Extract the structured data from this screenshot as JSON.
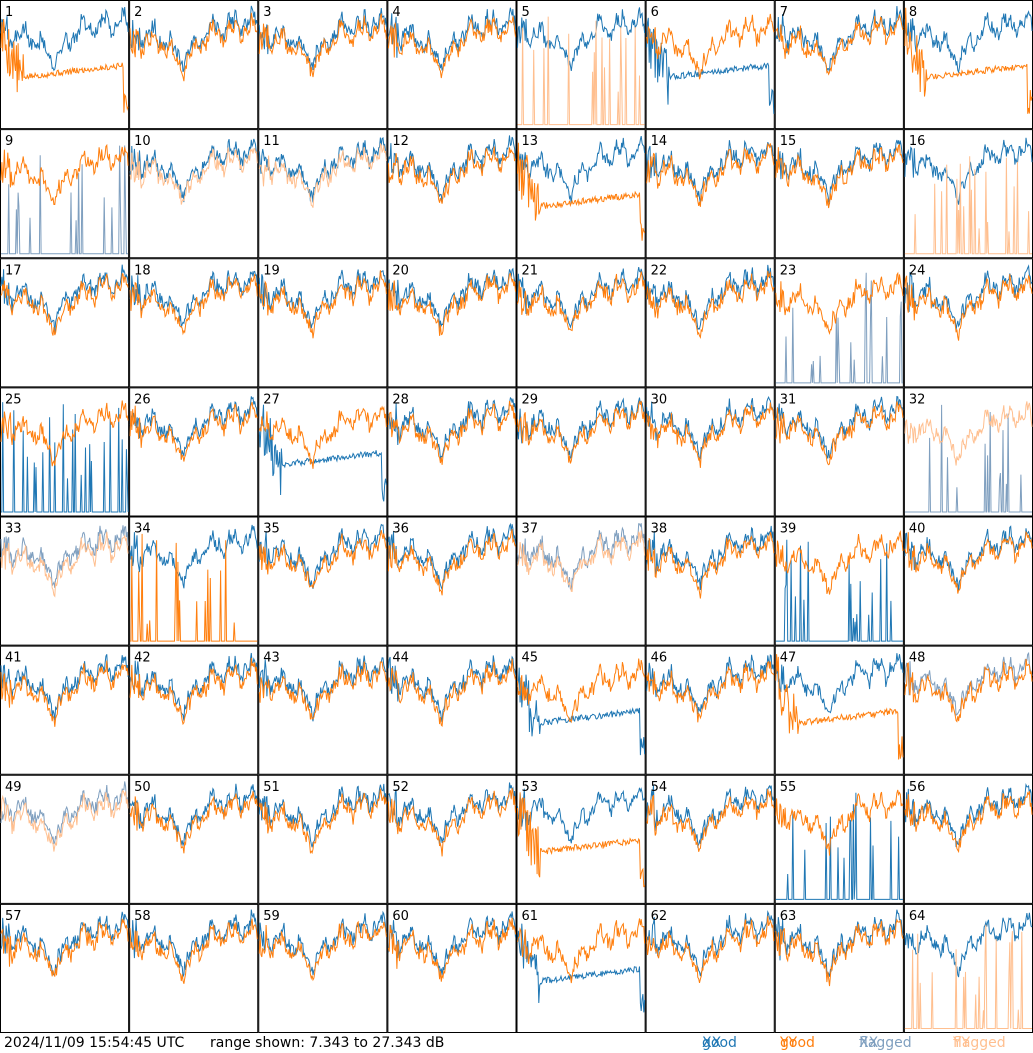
{
  "colors": {
    "good_xx": "#1f77b4",
    "good_yy": "#ff7f0e",
    "flagged_xx": "#7f9fbf",
    "flagged_yy": "#ffbf8f"
  },
  "footer": {
    "timestamp": "2024/11/09 15:54:45 UTC",
    "range_text": "range shown: 7.343 to 27.343 dB"
  },
  "legend": [
    {
      "status": "good",
      "pol": "XX",
      "color": "#1f77b4"
    },
    {
      "status": "good",
      "pol": "YY",
      "color": "#ff7f0e"
    },
    {
      "status": "flagged",
      "pol": "XX",
      "color": "#7f9fbf"
    },
    {
      "status": "flagged",
      "pol": "YY",
      "color": "#ffbf8f"
    }
  ],
  "chart_data": {
    "type": "line",
    "layout": "small-multiples 8x8",
    "range_db": [
      7.343,
      27.343
    ],
    "panels": [
      {
        "id": "1",
        "xx": "good",
        "yy": "good",
        "xx_shape": "normal",
        "yy_shape": "dip"
      },
      {
        "id": "2",
        "xx": "good",
        "yy": "good",
        "xx_shape": "normal",
        "yy_shape": "normal"
      },
      {
        "id": "3",
        "xx": "good",
        "yy": "good",
        "xx_shape": "normal",
        "yy_shape": "normal"
      },
      {
        "id": "4",
        "xx": "good",
        "yy": "good",
        "xx_shape": "normal",
        "yy_shape": "normal"
      },
      {
        "id": "5",
        "xx": "good",
        "yy": "flagged",
        "xx_shape": "normal",
        "yy_shape": "spikes"
      },
      {
        "id": "6",
        "xx": "good",
        "yy": "good",
        "xx_shape": "dip",
        "yy_shape": "normal"
      },
      {
        "id": "7",
        "xx": "good",
        "yy": "good",
        "xx_shape": "normal",
        "yy_shape": "normal"
      },
      {
        "id": "8",
        "xx": "good",
        "yy": "good",
        "xx_shape": "normal",
        "yy_shape": "dip"
      },
      {
        "id": "9",
        "xx": "flagged",
        "yy": "good",
        "xx_shape": "spikes",
        "yy_shape": "normal"
      },
      {
        "id": "10",
        "xx": "good",
        "yy": "flagged",
        "xx_shape": "normal",
        "yy_shape": "normal"
      },
      {
        "id": "11",
        "xx": "good",
        "yy": "flagged",
        "xx_shape": "normal",
        "yy_shape": "normal"
      },
      {
        "id": "12",
        "xx": "good",
        "yy": "good",
        "xx_shape": "normal",
        "yy_shape": "normal"
      },
      {
        "id": "13",
        "xx": "good",
        "yy": "good",
        "xx_shape": "normal",
        "yy_shape": "dip"
      },
      {
        "id": "14",
        "xx": "good",
        "yy": "good",
        "xx_shape": "normal",
        "yy_shape": "normal"
      },
      {
        "id": "15",
        "xx": "good",
        "yy": "good",
        "xx_shape": "normal",
        "yy_shape": "normal"
      },
      {
        "id": "16",
        "xx": "good",
        "yy": "flagged",
        "xx_shape": "normal",
        "yy_shape": "spikes"
      },
      {
        "id": "17",
        "xx": "good",
        "yy": "good",
        "xx_shape": "normal",
        "yy_shape": "normal"
      },
      {
        "id": "18",
        "xx": "good",
        "yy": "good",
        "xx_shape": "normal",
        "yy_shape": "normal"
      },
      {
        "id": "19",
        "xx": "good",
        "yy": "good",
        "xx_shape": "normal",
        "yy_shape": "normal"
      },
      {
        "id": "20",
        "xx": "good",
        "yy": "good",
        "xx_shape": "normal",
        "yy_shape": "normal"
      },
      {
        "id": "21",
        "xx": "good",
        "yy": "good",
        "xx_shape": "normal",
        "yy_shape": "normal"
      },
      {
        "id": "22",
        "xx": "good",
        "yy": "good",
        "xx_shape": "normal",
        "yy_shape": "normal"
      },
      {
        "id": "23",
        "xx": "flagged",
        "yy": "good",
        "xx_shape": "spikes",
        "yy_shape": "normal"
      },
      {
        "id": "24",
        "xx": "good",
        "yy": "good",
        "xx_shape": "normal",
        "yy_shape": "normal"
      },
      {
        "id": "25",
        "xx": "good",
        "yy": "good",
        "xx_shape": "spikes",
        "yy_shape": "normal"
      },
      {
        "id": "26",
        "xx": "good",
        "yy": "good",
        "xx_shape": "normal",
        "yy_shape": "normal"
      },
      {
        "id": "27",
        "xx": "good",
        "yy": "good",
        "xx_shape": "dip",
        "yy_shape": "normal"
      },
      {
        "id": "28",
        "xx": "good",
        "yy": "good",
        "xx_shape": "normal",
        "yy_shape": "normal"
      },
      {
        "id": "29",
        "xx": "good",
        "yy": "good",
        "xx_shape": "normal",
        "yy_shape": "normal"
      },
      {
        "id": "30",
        "xx": "good",
        "yy": "good",
        "xx_shape": "normal",
        "yy_shape": "normal"
      },
      {
        "id": "31",
        "xx": "good",
        "yy": "good",
        "xx_shape": "normal",
        "yy_shape": "normal"
      },
      {
        "id": "32",
        "xx": "flagged",
        "yy": "flagged",
        "xx_shape": "spikes",
        "yy_shape": "normal"
      },
      {
        "id": "33",
        "xx": "flagged",
        "yy": "flagged",
        "xx_shape": "normal",
        "yy_shape": "normal"
      },
      {
        "id": "34",
        "xx": "good",
        "yy": "good",
        "xx_shape": "normal",
        "yy_shape": "spikes"
      },
      {
        "id": "35",
        "xx": "good",
        "yy": "good",
        "xx_shape": "normal",
        "yy_shape": "normal"
      },
      {
        "id": "36",
        "xx": "good",
        "yy": "good",
        "xx_shape": "normal",
        "yy_shape": "normal"
      },
      {
        "id": "37",
        "xx": "flagged",
        "yy": "flagged",
        "xx_shape": "normal",
        "yy_shape": "normal"
      },
      {
        "id": "38",
        "xx": "good",
        "yy": "good",
        "xx_shape": "normal",
        "yy_shape": "normal"
      },
      {
        "id": "39",
        "xx": "good",
        "yy": "good",
        "xx_shape": "spikes",
        "yy_shape": "normal"
      },
      {
        "id": "40",
        "xx": "good",
        "yy": "good",
        "xx_shape": "normal",
        "yy_shape": "normal"
      },
      {
        "id": "41",
        "xx": "good",
        "yy": "good",
        "xx_shape": "normal",
        "yy_shape": "normal"
      },
      {
        "id": "42",
        "xx": "good",
        "yy": "good",
        "xx_shape": "normal",
        "yy_shape": "normal"
      },
      {
        "id": "43",
        "xx": "good",
        "yy": "good",
        "xx_shape": "normal",
        "yy_shape": "normal"
      },
      {
        "id": "44",
        "xx": "good",
        "yy": "good",
        "xx_shape": "normal",
        "yy_shape": "normal"
      },
      {
        "id": "45",
        "xx": "good",
        "yy": "good",
        "xx_shape": "dip",
        "yy_shape": "normal"
      },
      {
        "id": "46",
        "xx": "good",
        "yy": "good",
        "xx_shape": "normal",
        "yy_shape": "normal"
      },
      {
        "id": "47",
        "xx": "good",
        "yy": "good",
        "xx_shape": "normal",
        "yy_shape": "dip"
      },
      {
        "id": "48",
        "xx": "flagged",
        "yy": "good",
        "xx_shape": "normal",
        "yy_shape": "normal"
      },
      {
        "id": "49",
        "xx": "flagged",
        "yy": "flagged",
        "xx_shape": "normal",
        "yy_shape": "normal"
      },
      {
        "id": "50",
        "xx": "good",
        "yy": "good",
        "xx_shape": "normal",
        "yy_shape": "normal"
      },
      {
        "id": "51",
        "xx": "good",
        "yy": "good",
        "xx_shape": "normal",
        "yy_shape": "normal"
      },
      {
        "id": "52",
        "xx": "good",
        "yy": "good",
        "xx_shape": "normal",
        "yy_shape": "normal"
      },
      {
        "id": "53",
        "xx": "good",
        "yy": "good",
        "xx_shape": "normal",
        "yy_shape": "dip"
      },
      {
        "id": "54",
        "xx": "good",
        "yy": "good",
        "xx_shape": "normal",
        "yy_shape": "normal"
      },
      {
        "id": "55",
        "xx": "good",
        "yy": "good",
        "xx_shape": "spikes",
        "yy_shape": "normal"
      },
      {
        "id": "56",
        "xx": "good",
        "yy": "good",
        "xx_shape": "normal",
        "yy_shape": "normal"
      },
      {
        "id": "57",
        "xx": "good",
        "yy": "good",
        "xx_shape": "normal",
        "yy_shape": "normal"
      },
      {
        "id": "58",
        "xx": "good",
        "yy": "good",
        "xx_shape": "normal",
        "yy_shape": "normal"
      },
      {
        "id": "59",
        "xx": "good",
        "yy": "good",
        "xx_shape": "normal",
        "yy_shape": "normal"
      },
      {
        "id": "60",
        "xx": "good",
        "yy": "good",
        "xx_shape": "normal",
        "yy_shape": "normal"
      },
      {
        "id": "61",
        "xx": "good",
        "yy": "good",
        "xx_shape": "dip",
        "yy_shape": "normal"
      },
      {
        "id": "62",
        "xx": "good",
        "yy": "good",
        "xx_shape": "normal",
        "yy_shape": "normal"
      },
      {
        "id": "63",
        "xx": "good",
        "yy": "good",
        "xx_shape": "normal",
        "yy_shape": "normal"
      },
      {
        "id": "64",
        "xx": "good",
        "yy": "flagged",
        "xx_shape": "normal",
        "yy_shape": "spikes"
      }
    ]
  }
}
